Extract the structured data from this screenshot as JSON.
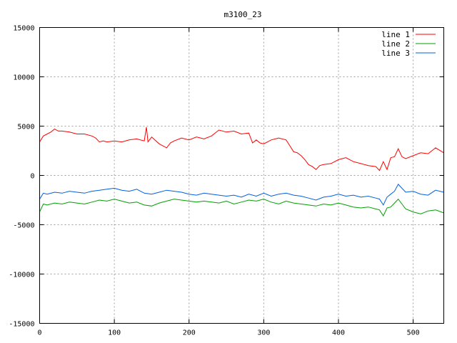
{
  "chart_data": {
    "type": "line",
    "title": "m3100_23",
    "xlabel": "",
    "ylabel": "",
    "xlim": [
      0,
      541
    ],
    "ylim": [
      -15000,
      15000
    ],
    "grid": true,
    "legend_position": "top-right",
    "x_ticks": [
      "0",
      "100",
      "200",
      "300",
      "400",
      "500"
    ],
    "y_ticks": [
      "15000",
      "10000",
      "5000",
      "0",
      "-5000",
      "-10000",
      "-15000"
    ],
    "series": [
      {
        "name": "line 1",
        "color": "#ff0000",
        "x": [
          0,
          5,
          10,
          15,
          20,
          25,
          30,
          40,
          50,
          60,
          70,
          75,
          80,
          85,
          90,
          100,
          110,
          120,
          130,
          140,
          143,
          145,
          150,
          160,
          170,
          175,
          180,
          190,
          200,
          210,
          220,
          230,
          240,
          250,
          260,
          270,
          280,
          285,
          290,
          295,
          300,
          310,
          320,
          330,
          335,
          340,
          345,
          350,
          355,
          360,
          365,
          370,
          375,
          380,
          390,
          400,
          410,
          420,
          430,
          440,
          450,
          455,
          460,
          465,
          470,
          475,
          480,
          485,
          490,
          500,
          510,
          520,
          530,
          541
        ],
        "values": [
          3400,
          4000,
          4200,
          4400,
          4700,
          4500,
          4500,
          4400,
          4200,
          4200,
          4000,
          3800,
          3400,
          3500,
          3400,
          3500,
          3400,
          3600,
          3700,
          3500,
          4900,
          3400,
          3900,
          3200,
          2800,
          3300,
          3500,
          3800,
          3600,
          3900,
          3700,
          4000,
          4600,
          4400,
          4500,
          4200,
          4300,
          3300,
          3600,
          3300,
          3200,
          3600,
          3800,
          3600,
          3000,
          2400,
          2300,
          2000,
          1600,
          1100,
          900,
          600,
          1000,
          1100,
          1200,
          1600,
          1800,
          1400,
          1200,
          1000,
          900,
          500,
          1400,
          600,
          1800,
          1900,
          2700,
          1900,
          1700,
          2000,
          2300,
          2200,
          2800,
          2300
        ]
      },
      {
        "name": "line 2",
        "color": "#00a000",
        "x": [
          0,
          5,
          10,
          20,
          30,
          40,
          50,
          60,
          70,
          80,
          90,
          100,
          110,
          120,
          130,
          140,
          150,
          160,
          170,
          180,
          190,
          200,
          210,
          220,
          230,
          240,
          250,
          260,
          270,
          280,
          290,
          300,
          310,
          320,
          330,
          340,
          350,
          360,
          370,
          380,
          390,
          400,
          410,
          420,
          430,
          440,
          450,
          455,
          460,
          465,
          470,
          475,
          480,
          490,
          500,
          510,
          520,
          530,
          541
        ],
        "values": [
          -3700,
          -2900,
          -3000,
          -2800,
          -2900,
          -2700,
          -2800,
          -2900,
          -2700,
          -2500,
          -2600,
          -2400,
          -2600,
          -2800,
          -2700,
          -3000,
          -3100,
          -2800,
          -2600,
          -2400,
          -2500,
          -2600,
          -2700,
          -2600,
          -2700,
          -2800,
          -2600,
          -2900,
          -2700,
          -2500,
          -2600,
          -2400,
          -2700,
          -2900,
          -2600,
          -2800,
          -2900,
          -3000,
          -3100,
          -2900,
          -3000,
          -2800,
          -3000,
          -3200,
          -3300,
          -3200,
          -3400,
          -3500,
          -4100,
          -3300,
          -3200,
          -2800,
          -2400,
          -3400,
          -3700,
          -3900,
          -3600,
          -3500,
          -3800
        ]
      },
      {
        "name": "line 3",
        "color": "#0060e0",
        "x": [
          0,
          5,
          10,
          20,
          30,
          40,
          50,
          60,
          70,
          80,
          90,
          100,
          110,
          120,
          130,
          140,
          150,
          160,
          170,
          180,
          190,
          200,
          210,
          220,
          230,
          240,
          250,
          260,
          270,
          280,
          290,
          300,
          310,
          320,
          330,
          340,
          350,
          360,
          370,
          380,
          390,
          400,
          410,
          420,
          430,
          440,
          450,
          455,
          460,
          465,
          470,
          475,
          480,
          490,
          500,
          510,
          520,
          530,
          541
        ],
        "values": [
          -2400,
          -1800,
          -1900,
          -1700,
          -1800,
          -1600,
          -1700,
          -1800,
          -1600,
          -1500,
          -1400,
          -1300,
          -1500,
          -1600,
          -1400,
          -1800,
          -1900,
          -1700,
          -1500,
          -1600,
          -1700,
          -1900,
          -2000,
          -1800,
          -1900,
          -2000,
          -2100,
          -2000,
          -2200,
          -1900,
          -2100,
          -1800,
          -2100,
          -1900,
          -1800,
          -2000,
          -2100,
          -2300,
          -2500,
          -2200,
          -2100,
          -1900,
          -2100,
          -2000,
          -2200,
          -2100,
          -2300,
          -2400,
          -3000,
          -2200,
          -1900,
          -1600,
          -900,
          -1700,
          -1600,
          -1900,
          -2000,
          -1500,
          -1700
        ]
      }
    ]
  }
}
